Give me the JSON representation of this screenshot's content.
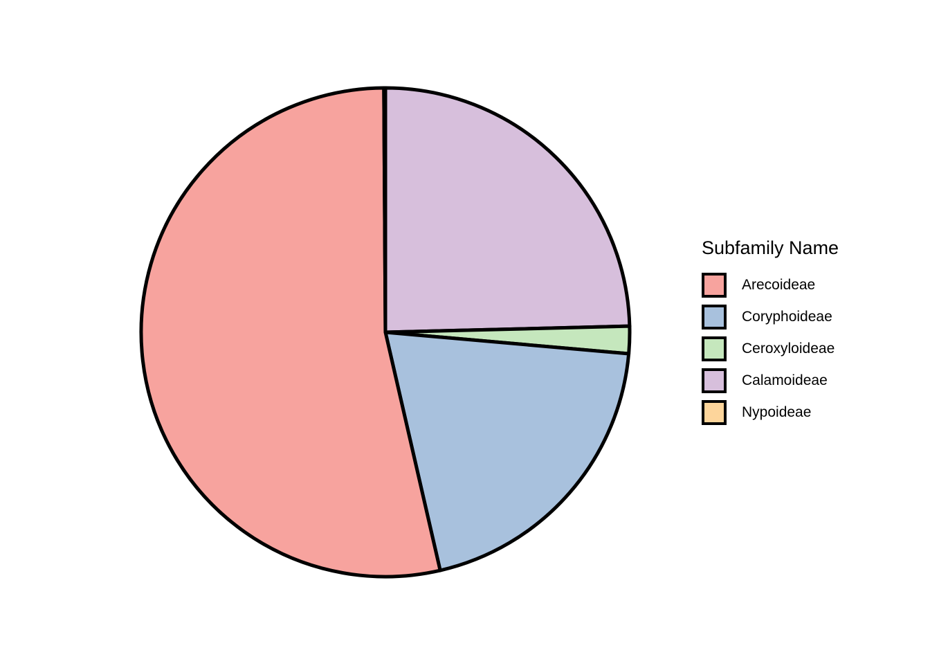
{
  "chart_data": {
    "type": "pie",
    "legend_title": "Subfamily Name",
    "legend_position": "right",
    "start_direction": "clockwise-from-top",
    "stroke_color": "#000000",
    "categories": [
      "Arecoideae",
      "Coryphoideae",
      "Ceroxyloideae",
      "Calamoideae",
      "Nypoideae"
    ],
    "colors": [
      "#F7A39E",
      "#A8C1DD",
      "#C5E7BD",
      "#D7BFDC",
      "#FDD59B"
    ],
    "slice_order": [
      "Calamoideae",
      "Ceroxyloideae",
      "Coryphoideae",
      "Arecoideae",
      "Nypoideae"
    ],
    "values": {
      "Calamoideae": 24.6,
      "Ceroxyloideae": 1.8,
      "Coryphoideae": 20.0,
      "Arecoideae": 53.5,
      "Nypoideae": 0.1
    }
  }
}
